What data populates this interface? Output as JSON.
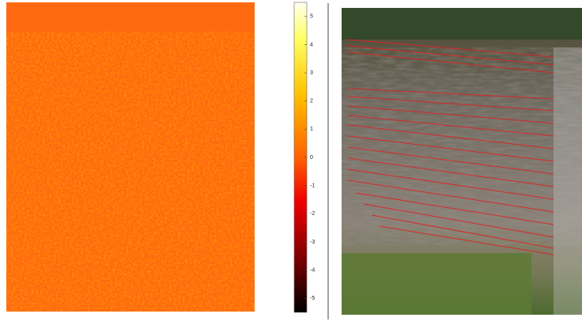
{
  "colorbar": {
    "clim": [
      -5.5,
      5.5
    ],
    "ticks": [
      5,
      4,
      3,
      2,
      1,
      0,
      -1,
      -2,
      -3,
      -4,
      -5
    ]
  }
}
